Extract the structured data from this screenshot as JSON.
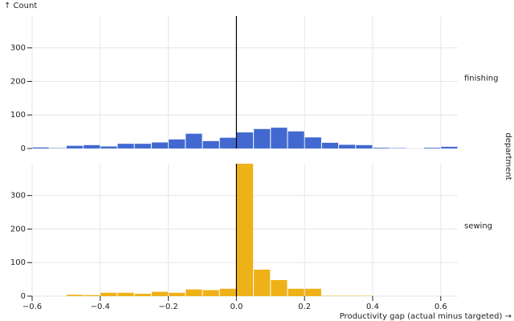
{
  "chart_data": {
    "type": "histogram",
    "y_label": "↑ Count",
    "x_label": "Productivity gap (actual minus targeted) →",
    "facet_label": "department",
    "bins": [
      -0.6,
      -0.55,
      -0.5,
      -0.45,
      -0.4,
      -0.35,
      -0.3,
      -0.25,
      -0.2,
      -0.15,
      -0.1,
      -0.05,
      0,
      0.05,
      0.1,
      0.15,
      0.2,
      0.25,
      0.3,
      0.35,
      0.4,
      0.45,
      0.5,
      0.55,
      0.6,
      0.65
    ],
    "series": [
      {
        "name": "finishing",
        "color": "#4269d0",
        "values": [
          3,
          1,
          8,
          10,
          6,
          14,
          14,
          18,
          27,
          44,
          22,
          32,
          48,
          58,
          62,
          51,
          33,
          17,
          11,
          10,
          2,
          1,
          0,
          2,
          5
        ]
      },
      {
        "name": "sewing",
        "color": "#efb118",
        "values": [
          0,
          0,
          4,
          3,
          10,
          10,
          7,
          13,
          10,
          20,
          18,
          22,
          395,
          79,
          48,
          22,
          22,
          1,
          1,
          1,
          0,
          0,
          0,
          0,
          0
        ]
      }
    ],
    "xlim": [
      -0.6,
      0.65
    ],
    "xticks": [
      {
        "value": -0.6,
        "label": "−0.6"
      },
      {
        "value": -0.4,
        "label": "−0.4"
      },
      {
        "value": -0.2,
        "label": "−0.2"
      },
      {
        "value": 0,
        "label": "0.0"
      },
      0.2,
      0.4,
      0.6
    ],
    "ylim": [
      0,
      395
    ],
    "yticks": [
      0,
      100,
      200,
      300
    ],
    "x_rule": 0,
    "grid": true
  }
}
